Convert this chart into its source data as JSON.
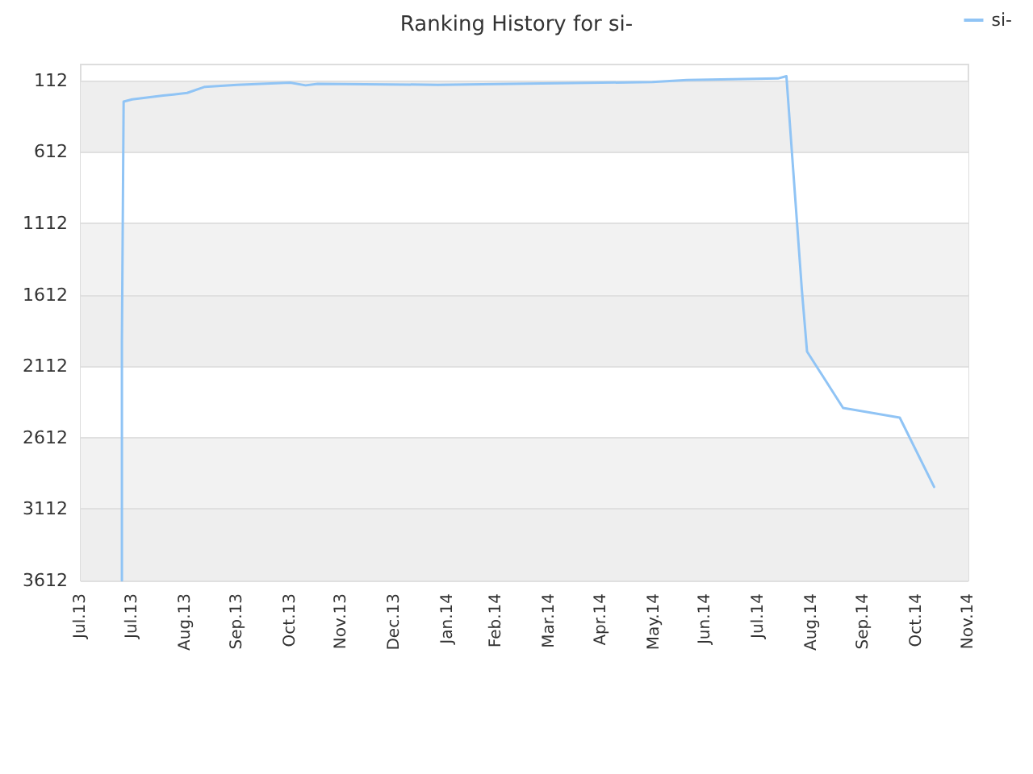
{
  "chart_data": {
    "type": "line",
    "title": "Ranking History for si-",
    "x": [
      "2013-07-25",
      "2013-07-25",
      "2013-07-26",
      "2013-07-31",
      "2013-08-18",
      "2013-08-24",
      "2013-09-01",
      "2013-09-11",
      "2013-09-30",
      "2013-10-31",
      "2013-11-09",
      "2013-11-16",
      "2014-01-25",
      "2014-05-30",
      "2014-06-19",
      "2014-08-11",
      "2014-08-16",
      "2014-08-25",
      "2014-08-28",
      "2014-09-18",
      "2014-10-21",
      "2014-11-10"
    ],
    "series": [
      {
        "name": "si-",
        "color": "#90c4f5",
        "values": [
          3612,
          1940,
          260,
          244,
          217,
          210,
          199,
          157,
          142,
          127,
          146,
          135,
          142,
          123,
          108,
          98,
          82,
          1580,
          2009,
          2404,
          2472,
          2957
        ]
      }
    ],
    "ylim": [
      3612,
      0
    ],
    "yticks": [
      112,
      612,
      1112,
      1612,
      2112,
      2612,
      3112,
      3612
    ],
    "xlim": [
      "2013-07-01",
      "2014-11-30"
    ],
    "xticks": [
      {
        "value": "2013-07-01",
        "label": "Jul.13"
      },
      {
        "value": "2013-07-31",
        "label": "Jul.13"
      },
      {
        "value": "2013-08-31",
        "label": "Aug.13"
      },
      {
        "value": "2013-09-30",
        "label": "Sep.13"
      },
      {
        "value": "2013-10-31",
        "label": "Oct.13"
      },
      {
        "value": "2013-11-30",
        "label": "Nov.13"
      },
      {
        "value": "2013-12-31",
        "label": "Dec.13"
      },
      {
        "value": "2014-01-31",
        "label": "Jan.14"
      },
      {
        "value": "2014-02-28",
        "label": "Feb.14"
      },
      {
        "value": "2014-03-31",
        "label": "Mar.14"
      },
      {
        "value": "2014-04-30",
        "label": "Apr.14"
      },
      {
        "value": "2014-05-31",
        "label": "May.14"
      },
      {
        "value": "2014-06-30",
        "label": "Jun.14"
      },
      {
        "value": "2014-07-31",
        "label": "Jul.14"
      },
      {
        "value": "2014-08-31",
        "label": "Aug.14"
      },
      {
        "value": "2014-09-30",
        "label": "Sep.14"
      },
      {
        "value": "2014-10-31",
        "label": "Oct.14"
      },
      {
        "value": "2014-11-30",
        "label": "Nov.14"
      }
    ],
    "grid": "y",
    "legend": "top right",
    "marker": "none",
    "line_style": "solid"
  }
}
